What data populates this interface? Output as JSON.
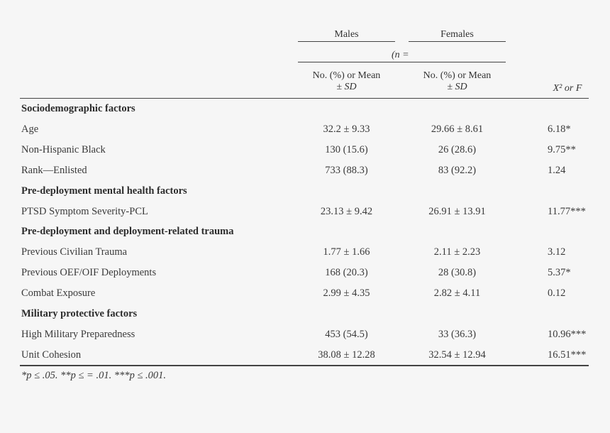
{
  "header": {
    "group1": "Males",
    "group2": "Females",
    "n_label": "(n =",
    "col1_line1": "No. (%) or Mean",
    "col1_line2": "± SD",
    "col2_line1": "No. (%) or Mean",
    "col2_line2": "± SD",
    "stat_col": "X² or F"
  },
  "rows": [
    {
      "type": "section",
      "label": "Sociodemographic factors"
    },
    {
      "type": "data",
      "label": "Age",
      "males": "32.2 ± 9.33",
      "females": "29.66 ± 8.61",
      "stat": "6.18*"
    },
    {
      "type": "data",
      "label": "Non-Hispanic Black",
      "males": "130 (15.6)",
      "females": "26 (28.6)",
      "stat": "9.75**"
    },
    {
      "type": "data",
      "label": "Rank—Enlisted",
      "males": "733 (88.3)",
      "females": "83 (92.2)",
      "stat": "1.24"
    },
    {
      "type": "section",
      "label": "Pre-deployment mental health factors"
    },
    {
      "type": "data",
      "label": "PTSD Symptom Severity-PCL",
      "males": "23.13 ± 9.42",
      "females": "26.91 ± 13.91",
      "stat": "11.77***"
    },
    {
      "type": "section",
      "label": "Pre-deployment and deployment-related trauma"
    },
    {
      "type": "data",
      "label": "Previous Civilian Trauma",
      "males": "1.77 ± 1.66",
      "females": "2.11 ± 2.23",
      "stat": "3.12"
    },
    {
      "type": "data",
      "label": "Previous OEF/OIF Deployments",
      "males": "168 (20.3)",
      "females": "28 (30.8)",
      "stat": "5.37*"
    },
    {
      "type": "data",
      "label": "Combat Exposure",
      "males": "2.99 ± 4.35",
      "females": "2.82 ± 4.11",
      "stat": "0.12"
    },
    {
      "type": "section",
      "label": "Military protective factors"
    },
    {
      "type": "data",
      "label": "High Military Preparedness",
      "males": "453 (54.5)",
      "females": "33 (36.3)",
      "stat": "10.96***"
    },
    {
      "type": "data",
      "label": "Unit Cohesion",
      "males": "38.08 ± 12.28",
      "females": "32.54 ± 12.94",
      "stat": "16.51***"
    }
  ],
  "footnote": "*p ≤ .05. **p ≤ = .01. ***p ≤ .001."
}
